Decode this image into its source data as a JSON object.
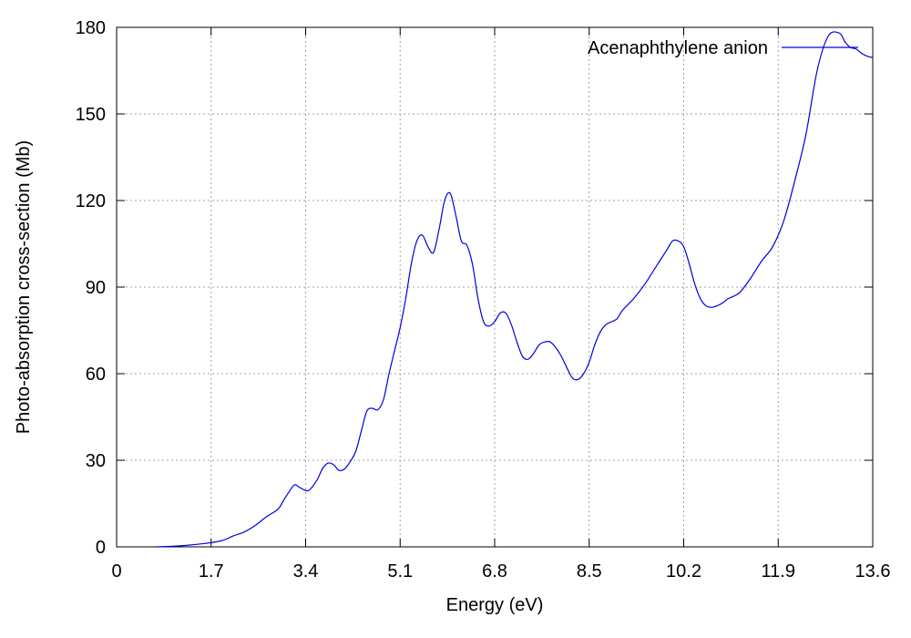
{
  "chart_data": {
    "type": "line",
    "title": "",
    "xlabel": "Energy (eV)",
    "ylabel": "Photo-absorption cross-section (Mb)",
    "xlim": [
      0,
      13.6
    ],
    "ylim": [
      0,
      180
    ],
    "xticks": [
      0,
      1.7,
      3.4,
      5.1,
      6.8,
      8.5,
      10.2,
      11.9,
      13.6
    ],
    "xtick_labels": [
      "0",
      "1.7",
      "3.4",
      "5.1",
      "6.8",
      "8.5",
      "10.2",
      "11.9",
      "13.6"
    ],
    "yticks": [
      0,
      30,
      60,
      90,
      120,
      150,
      180
    ],
    "ytick_labels": [
      "0",
      "30",
      "60",
      "90",
      "120",
      "150",
      "180"
    ],
    "grid": true,
    "legend_position": "top-right",
    "series": [
      {
        "name": "Acenaphthylene anion",
        "color": "#0000dd",
        "x": [
          0.7,
          1.0,
          1.3,
          1.6,
          1.9,
          2.1,
          2.3,
          2.5,
          2.7,
          2.9,
          3.0,
          3.1,
          3.2,
          3.3,
          3.45,
          3.6,
          3.7,
          3.8,
          3.9,
          4.0,
          4.1,
          4.2,
          4.3,
          4.4,
          4.5,
          4.6,
          4.7,
          4.8,
          4.9,
          5.0,
          5.1,
          5.2,
          5.3,
          5.4,
          5.5,
          5.6,
          5.7,
          5.8,
          5.9,
          6.0,
          6.1,
          6.2,
          6.3,
          6.4,
          6.5,
          6.6,
          6.7,
          6.8,
          6.9,
          7.0,
          7.1,
          7.2,
          7.3,
          7.4,
          7.5,
          7.6,
          7.7,
          7.8,
          7.9,
          8.0,
          8.1,
          8.2,
          8.3,
          8.4,
          8.5,
          8.6,
          8.7,
          8.8,
          8.9,
          9.0,
          9.1,
          9.3,
          9.5,
          9.7,
          9.9,
          10.0,
          10.1,
          10.2,
          10.3,
          10.4,
          10.5,
          10.6,
          10.7,
          10.8,
          10.9,
          11.0,
          11.2,
          11.4,
          11.6,
          11.8,
          12.0,
          12.2,
          12.4,
          12.6,
          12.8,
          13.0,
          13.1,
          13.2,
          13.3,
          13.4,
          13.5,
          13.6
        ],
        "y": [
          0,
          0.2,
          0.6,
          1.2,
          2.2,
          3.8,
          5.2,
          7.5,
          10.5,
          13,
          16,
          19,
          21.5,
          20.5,
          19.5,
          23,
          27,
          29,
          28.5,
          26.5,
          27,
          29.5,
          33,
          40,
          47,
          48,
          47.5,
          51,
          60,
          68,
          76,
          86,
          98,
          106,
          108,
          104,
          102,
          110,
          120,
          122.5,
          115,
          106,
          104.5,
          98,
          86,
          78,
          76.5,
          78,
          81,
          81,
          77,
          71,
          66,
          65,
          67,
          70,
          71,
          71,
          69,
          66,
          62,
          58.5,
          58,
          60,
          64,
          70,
          74.5,
          77,
          78,
          79,
          82,
          86,
          91,
          97,
          103,
          106,
          106,
          104,
          98,
          91,
          86,
          83.5,
          83,
          83.5,
          84.5,
          86,
          88,
          93,
          99,
          104,
          113,
          127,
          143,
          165,
          177,
          178,
          175,
          173,
          172.5,
          171,
          170,
          169.5
        ]
      }
    ]
  }
}
